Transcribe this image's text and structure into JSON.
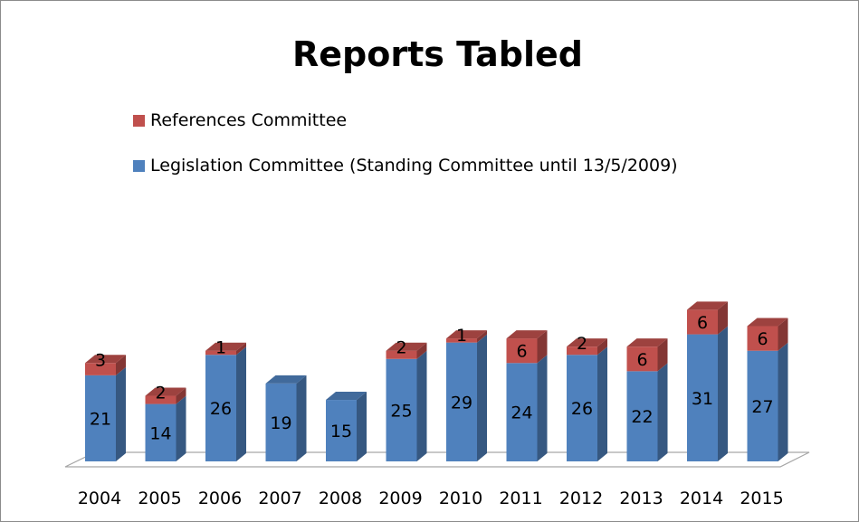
{
  "chart_data": {
    "type": "bar",
    "stacked": true,
    "three_d": true,
    "title": "Reports Tabled",
    "categories": [
      "2004",
      "2005",
      "2006",
      "2007",
      "2008",
      "2009",
      "2010",
      "2011",
      "2012",
      "2013",
      "2014",
      "2015"
    ],
    "series": [
      {
        "name": "Legislation Committee (Standing Committee until 13/5/2009)",
        "values": [
          21,
          14,
          26,
          19,
          15,
          25,
          29,
          24,
          26,
          22,
          31,
          27
        ],
        "color": "#4f81bd"
      },
      {
        "name": "References Committee",
        "values": [
          3,
          2,
          1,
          null,
          null,
          2,
          1,
          6,
          2,
          6,
          6,
          6
        ],
        "color": "#c0504d"
      }
    ],
    "legend_position": "top-left",
    "gridlines": false
  }
}
